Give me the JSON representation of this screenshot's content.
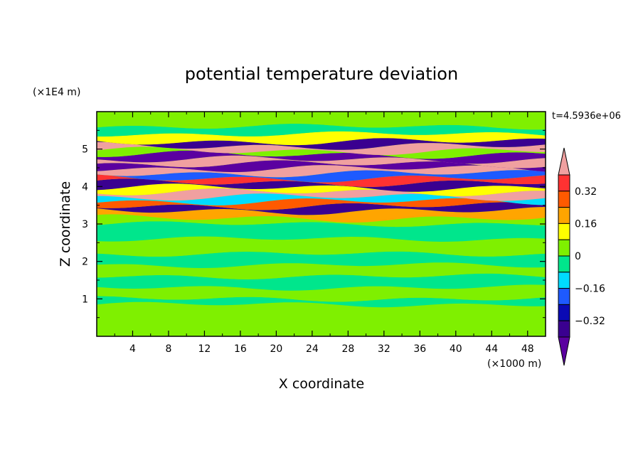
{
  "chart_data": {
    "type": "heatmap",
    "title": "potential temperature deviation",
    "xlabel": "X coordinate",
    "ylabel": "Z coordinate",
    "x_unit": "(×1000 m)",
    "y_unit": "(×1E4 m)",
    "time_label": "t=4.5936e+06",
    "xlim": [
      0,
      50
    ],
    "ylim": [
      0,
      6
    ],
    "xticks": [
      4,
      8,
      12,
      16,
      20,
      24,
      28,
      32,
      36,
      40,
      44,
      48
    ],
    "yticks": [
      1,
      2,
      3,
      4,
      5
    ],
    "colorbar": {
      "levels": [
        -0.48,
        -0.4,
        -0.32,
        -0.24,
        -0.16,
        -0.08,
        0,
        0.08,
        0.16,
        0.24,
        0.32,
        0.4
      ],
      "colors": [
        "#5b00a0",
        "#3a0090",
        "#0a0ab4",
        "#1e5aff",
        "#00dcff",
        "#00e68c",
        "#7ff000",
        "#ffff00",
        "#ffa500",
        "#ff5a00",
        "#ff3232",
        "#f0a0a0"
      ],
      "labeled_ticks": [
        -0.32,
        -0.16,
        0,
        0.16,
        0.32
      ],
      "tick_labels": [
        "−0.32",
        "−0.16",
        "0",
        "0.16",
        "0.32"
      ]
    },
    "bands": [
      {
        "z0": 0.0,
        "z1": 0.85,
        "value": 0.02
      },
      {
        "z0": 0.85,
        "z1": 1.0,
        "value": -0.02
      },
      {
        "z0": 1.0,
        "z1": 1.3,
        "value": 0.04
      },
      {
        "z0": 1.3,
        "z1": 1.6,
        "value": -0.03
      },
      {
        "z0": 1.6,
        "z1": 1.9,
        "value": 0.03
      },
      {
        "z0": 1.9,
        "z1": 2.2,
        "value": -0.02
      },
      {
        "z0": 2.2,
        "z1": 2.6,
        "value": 0.03
      },
      {
        "z0": 2.6,
        "z1": 3.0,
        "value": -0.02
      },
      {
        "z0": 3.0,
        "z1": 3.15,
        "value": 0.05
      },
      {
        "z0": 3.15,
        "z1": 3.35,
        "value": 0.2
      },
      {
        "z0": 3.35,
        "z1": 3.48,
        "value": -0.4
      },
      {
        "z0": 3.48,
        "z1": 3.6,
        "value": 0.3
      },
      {
        "z0": 3.6,
        "z1": 3.72,
        "value": -0.12
      },
      {
        "z0": 3.72,
        "z1": 3.85,
        "value": 0.42
      },
      {
        "z0": 3.85,
        "z1": 3.97,
        "value": 0.12
      },
      {
        "z0": 3.97,
        "z1": 4.1,
        "value": -0.38
      },
      {
        "z0": 4.1,
        "z1": 4.22,
        "value": 0.36
      },
      {
        "z0": 4.22,
        "z1": 4.35,
        "value": -0.2
      },
      {
        "z0": 4.35,
        "z1": 4.48,
        "value": 0.44
      },
      {
        "z0": 4.48,
        "z1": 4.6,
        "value": -0.42
      },
      {
        "z0": 4.6,
        "z1": 4.72,
        "value": 0.44
      },
      {
        "z0": 4.72,
        "z1": 4.85,
        "value": -0.46
      },
      {
        "z0": 4.85,
        "z1": 4.95,
        "value": 0.0
      },
      {
        "z0": 4.95,
        "z1": 5.08,
        "value": 0.42
      },
      {
        "z0": 5.08,
        "z1": 5.2,
        "value": -0.34
      },
      {
        "z0": 5.2,
        "z1": 5.4,
        "value": 0.14
      },
      {
        "z0": 5.4,
        "z1": 5.6,
        "value": -0.03
      },
      {
        "z0": 5.6,
        "z1": 6.0,
        "value": 0.03
      }
    ]
  }
}
